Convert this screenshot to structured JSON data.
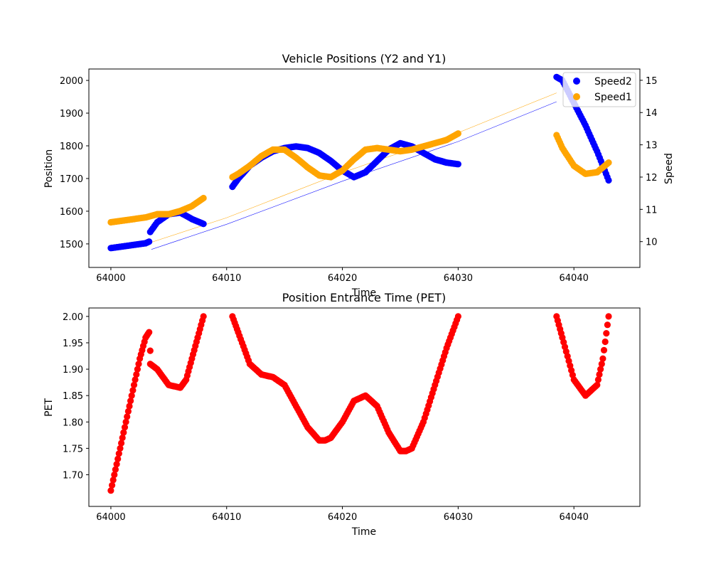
{
  "chart_data": [
    {
      "type": "scatter",
      "title": "Vehicle Positions (Y2 and Y1)",
      "xlabel": "Time",
      "ylabel": "Position",
      "y2label": "Speed",
      "xlim": [
        63998.1,
        64045.7
      ],
      "ylim": [
        1428,
        2035
      ],
      "y2lim": [
        9.2,
        15.35
      ],
      "xticks": [
        64000,
        64010,
        64020,
        64030,
        64040
      ],
      "yticks": [
        1500,
        1600,
        1700,
        1800,
        1900,
        2000
      ],
      "y2ticks": [
        10,
        11,
        12,
        13,
        14,
        15
      ],
      "legend_position": "top-right",
      "grid": false,
      "lines": [
        {
          "name": "Y2 position",
          "color": "#0000ff",
          "x": [
            64003.5,
            64010,
            64020,
            64030,
            64038.5
          ],
          "y": [
            1483,
            1560,
            1692,
            1813,
            1935
          ]
        },
        {
          "name": "Y1 position",
          "color": "#ffa500",
          "x": [
            64003.5,
            64010,
            64020,
            64030,
            64038.5
          ],
          "y": [
            1505,
            1580,
            1718,
            1840,
            1962
          ]
        }
      ],
      "series": [
        {
          "name": "Speed2",
          "color": "#0000ff",
          "axis": "right",
          "segments": [
            {
              "x": [
                64000,
                64001,
                64002,
                64003,
                64003.3,
                64003.4,
                64004,
                64005,
                64006,
                64007,
                64008
              ],
              "y": [
                9.8,
                9.85,
                9.9,
                9.95,
                10.0,
                10.3,
                10.6,
                10.85,
                10.9,
                10.7,
                10.55
              ]
            },
            {
              "x": [
                64010.5,
                64011,
                64012,
                64013,
                64014,
                64015,
                64016,
                64017,
                64018,
                64019,
                64020,
                64021,
                64022,
                64023,
                64024,
                64025,
                64026,
                64027,
                64028,
                64029,
                64030
              ],
              "y": [
                11.7,
                11.95,
                12.35,
                12.6,
                12.8,
                12.9,
                12.95,
                12.9,
                12.75,
                12.5,
                12.2,
                12.0,
                12.15,
                12.5,
                12.85,
                13.05,
                12.95,
                12.75,
                12.55,
                12.45,
                12.4
              ]
            },
            {
              "x": [
                64038.5,
                64039,
                64040,
                64041,
                64042,
                64043
              ],
              "y": [
                15.1,
                15.0,
                14.3,
                13.6,
                12.8,
                11.9
              ]
            }
          ]
        },
        {
          "name": "Speed1",
          "color": "#ffa500",
          "axis": "right",
          "segments": [
            {
              "x": [
                64000,
                64001,
                64002,
                64003,
                64004,
                64005,
                64006,
                64007,
                64008
              ],
              "y": [
                10.6,
                10.65,
                10.7,
                10.75,
                10.85,
                10.85,
                10.95,
                11.1,
                11.35
              ]
            },
            {
              "x": [
                64010.5,
                64011,
                64012,
                64013,
                64014,
                64015,
                64016,
                64017,
                64018,
                64019,
                64020,
                64021,
                64022,
                64023,
                64024,
                64025,
                64026,
                64027,
                64028,
                64029,
                64030
              ],
              "y": [
                12.0,
                12.1,
                12.35,
                12.65,
                12.85,
                12.85,
                12.6,
                12.3,
                12.05,
                12.0,
                12.2,
                12.55,
                12.85,
                12.9,
                12.85,
                12.8,
                12.85,
                12.95,
                13.05,
                13.15,
                13.35
              ]
            },
            {
              "x": [
                64038.5,
                64039,
                64040,
                64041,
                64042,
                64043
              ],
              "y": [
                13.3,
                12.9,
                12.35,
                12.1,
                12.15,
                12.45
              ]
            }
          ]
        }
      ]
    },
    {
      "type": "scatter",
      "title": "Position Entrance Time (PET)",
      "xlabel": "Time",
      "ylabel": "PET",
      "xlim": [
        63998.1,
        64045.7
      ],
      "ylim": [
        1.64,
        2.016
      ],
      "xticks": [
        64000,
        64010,
        64020,
        64030,
        64040
      ],
      "yticks": [
        1.7,
        1.75,
        1.8,
        1.85,
        1.9,
        1.95,
        2.0
      ],
      "grid": false,
      "series": [
        {
          "name": "PET",
          "color": "#ff0000",
          "segments": [
            {
              "x": [
                64000,
                64000.5,
                64001,
                64001.5,
                64002,
                64002.5,
                64003,
                64003.3
              ],
              "y": [
                1.67,
                1.72,
                1.77,
                1.82,
                1.87,
                1.92,
                1.96,
                1.97
              ]
            },
            {
              "x": [
                64003.4,
                64004,
                64005,
                64006,
                64006.5,
                64007,
                64007.5,
                64008
              ],
              "y": [
                1.91,
                1.9,
                1.87,
                1.865,
                1.88,
                1.92,
                1.96,
                2.0
              ]
            },
            {
              "x": [
                64010.5,
                64011,
                64012,
                64013,
                64014,
                64015,
                64016,
                64017,
                64018,
                64018.5,
                64019,
                64020,
                64021,
                64022,
                64023,
                64024,
                64025,
                64025.5,
                64026,
                64027,
                64028,
                64029,
                64030
              ],
              "y": [
                2.0,
                1.97,
                1.91,
                1.89,
                1.885,
                1.87,
                1.83,
                1.79,
                1.765,
                1.765,
                1.77,
                1.8,
                1.84,
                1.85,
                1.83,
                1.78,
                1.745,
                1.745,
                1.75,
                1.8,
                1.87,
                1.94,
                2.0
              ]
            },
            {
              "x": [
                64038.5,
                64039,
                64040,
                64041,
                64042,
                64042.5,
                64043
              ],
              "y": [
                2.0,
                1.96,
                1.88,
                1.85,
                1.87,
                1.92,
                2.0
              ]
            }
          ]
        }
      ]
    }
  ],
  "annotations": {
    "pet_outlier": {
      "x": 64003.4,
      "y": 1.935
    }
  }
}
